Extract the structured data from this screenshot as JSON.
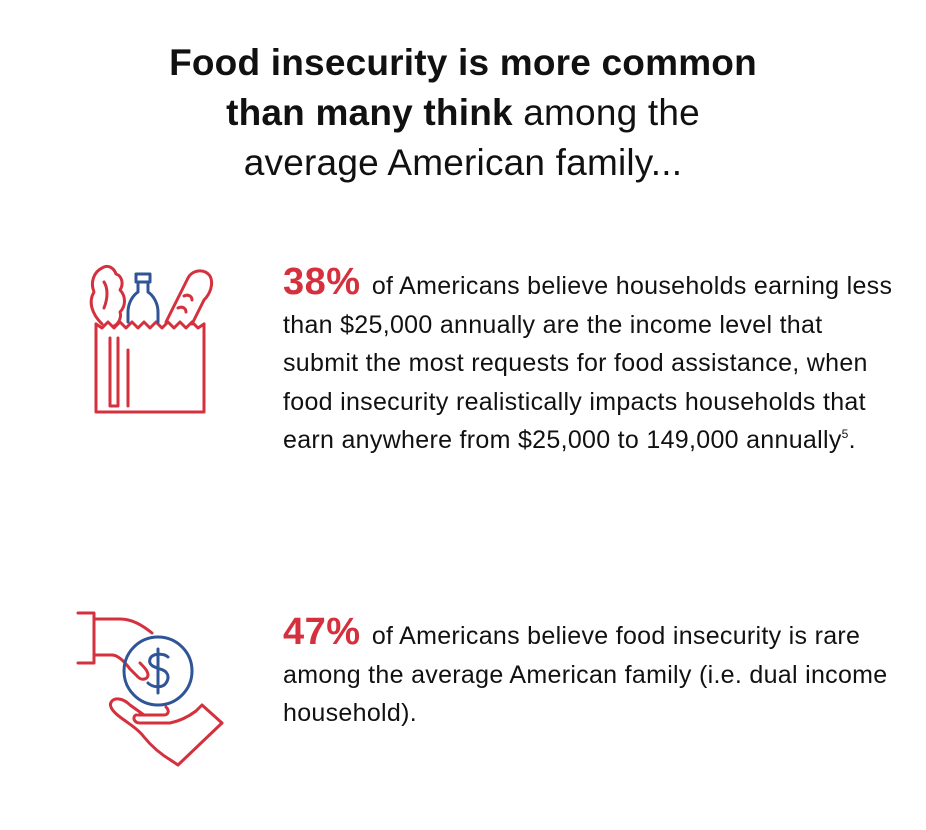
{
  "headline": {
    "bold_line_1": "Food insecurity is more common",
    "bold_line_2": "than many think",
    "normal_line_2": " among the",
    "normal_line_3": "average American family..."
  },
  "facts": [
    {
      "stat": "38%",
      "text": "of Americans believe households earning less than $25,000 annually are the income level that submit the most requests for food assistance, when food insecurity realistically impacts households that earn anywhere from $25,000 to 149,000 annually",
      "footnote": "5",
      "end": ".",
      "icon": "grocery-bag-icon"
    },
    {
      "stat": "47%",
      "text": "of Americans believe food insecurity is rare among the average American family (i.e. dual income household).",
      "icon": "hand-giving-money-icon"
    }
  ],
  "colors": {
    "accent_red": "#d4303e",
    "accent_blue": "#2f5597",
    "text": "#111111"
  }
}
